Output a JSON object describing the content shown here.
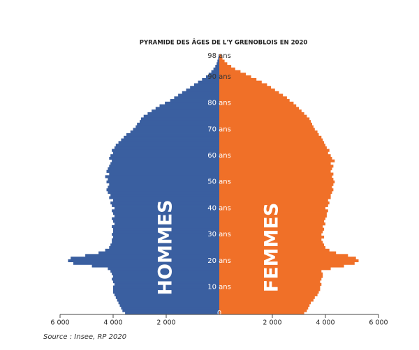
{
  "chart_data": {
    "type": "pyramid",
    "title": "PYRAMIDE DES ÂGES DE L'Y GRENOBLOIS EN 2020",
    "source": "Source : Insee, RP 2020",
    "categories": [
      "0",
      null,
      null,
      null,
      null,
      null,
      null,
      null,
      null,
      null,
      "10 ans",
      null,
      null,
      null,
      null,
      null,
      null,
      null,
      null,
      null,
      "20 ans",
      null,
      null,
      null,
      null,
      null,
      null,
      null,
      null,
      null,
      "30 ans",
      null,
      null,
      null,
      null,
      null,
      null,
      null,
      null,
      null,
      "40 ans",
      null,
      null,
      null,
      null,
      null,
      null,
      null,
      null,
      null,
      "50 ans",
      null,
      null,
      null,
      null,
      null,
      null,
      null,
      null,
      null,
      "60 ans",
      null,
      null,
      null,
      null,
      null,
      null,
      null,
      null,
      null,
      "70 ans",
      null,
      null,
      null,
      null,
      null,
      null,
      null,
      null,
      null,
      "80 ans",
      null,
      null,
      null,
      null,
      null,
      null,
      null,
      null,
      null,
      "90 ans",
      null,
      null,
      null,
      null,
      null,
      null,
      null,
      "98 ans"
    ],
    "series": [
      {
        "name": "HOMMES",
        "color": "#3a5fa0",
        "side": "left",
        "values": [
          3550,
          3650,
          3700,
          3750,
          3800,
          3850,
          3900,
          3950,
          4000,
          4000,
          4000,
          3950,
          4000,
          4050,
          4000,
          4050,
          4100,
          4200,
          4800,
          5500,
          5700,
          5600,
          5050,
          4550,
          4300,
          4150,
          4100,
          4050,
          4050,
          4000,
          4050,
          4000,
          4000,
          4050,
          3950,
          4000,
          4050,
          3950,
          4000,
          4050,
          3950,
          4050,
          4100,
          4000,
          4150,
          4100,
          4200,
          4250,
          4200,
          4150,
          4250,
          4200,
          4300,
          4150,
          4250,
          4200,
          4150,
          4100,
          4050,
          4150,
          4100,
          4000,
          4050,
          3950,
          3900,
          3800,
          3700,
          3600,
          3500,
          3350,
          3250,
          3150,
          3100,
          3000,
          2950,
          2850,
          2700,
          2550,
          2400,
          2250,
          2050,
          1850,
          1700,
          1550,
          1400,
          1250,
          1100,
          950,
          800,
          650,
          500,
          400,
          300,
          220,
          150,
          100,
          70,
          40,
          25
        ]
      },
      {
        "name": "FEMMES",
        "color": "#f07028",
        "side": "right",
        "values": [
          3200,
          3300,
          3350,
          3400,
          3450,
          3550,
          3600,
          3700,
          3750,
          3800,
          3800,
          3850,
          3800,
          3850,
          3900,
          3900,
          3850,
          4200,
          4700,
          5100,
          5250,
          5150,
          4850,
          4400,
          4150,
          4000,
          3950,
          3900,
          3850,
          3950,
          3850,
          3900,
          3950,
          3900,
          4000,
          3950,
          4000,
          4050,
          4050,
          4100,
          4000,
          4100,
          4150,
          4100,
          4200,
          4200,
          4250,
          4300,
          4250,
          4300,
          4350,
          4300,
          4250,
          4300,
          4200,
          4250,
          4300,
          4200,
          4350,
          4250,
          4200,
          4100,
          4150,
          4050,
          4000,
          3950,
          3900,
          3850,
          3750,
          3700,
          3600,
          3550,
          3500,
          3450,
          3400,
          3300,
          3200,
          3100,
          3000,
          2900,
          2800,
          2650,
          2550,
          2400,
          2250,
          2100,
          1950,
          1800,
          1600,
          1400,
          1200,
          1000,
          800,
          600,
          450,
          300,
          200,
          120,
          80
        ]
      }
    ],
    "xlim": [
      0,
      6000
    ],
    "xticks_left": [
      {
        "value": 6000,
        "label": "6 000"
      },
      {
        "value": 4000,
        "label": "4 000"
      },
      {
        "value": 2000,
        "label": "2 000"
      }
    ],
    "xticks_right": [
      {
        "value": 2000,
        "label": "2 000"
      },
      {
        "value": 4000,
        "label": "4 000"
      },
      {
        "value": 6000,
        "label": "6 000"
      }
    ]
  }
}
